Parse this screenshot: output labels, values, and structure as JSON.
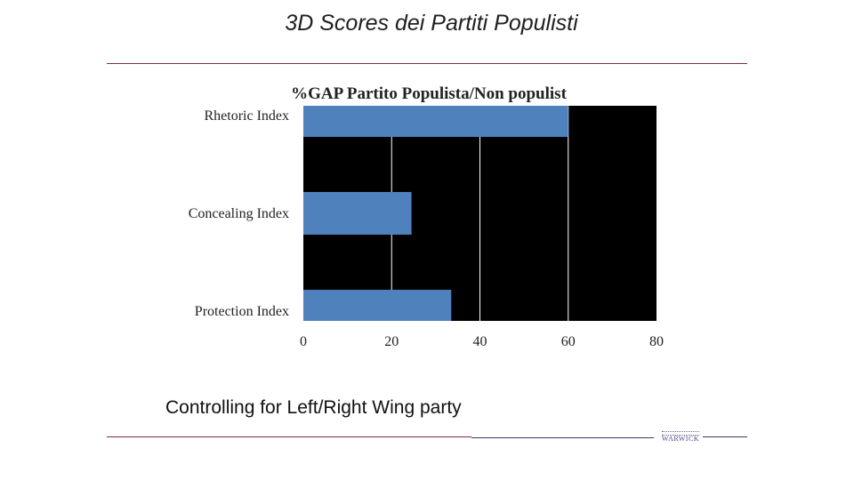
{
  "slide": {
    "title": "3D Scores dei Partiti Populisti",
    "subtitle": "Controlling for Left/Right Wing party"
  },
  "chart_data": {
    "type": "bar",
    "orientation": "horizontal",
    "title": "%GAP Partito Populista/Non populist",
    "categories": [
      "Rhetoric Index",
      "Concealing Index",
      "Protection Index"
    ],
    "values": [
      60,
      24.5,
      33.5
    ],
    "xlim": [
      0,
      80
    ],
    "xticks": [
      "0",
      "20",
      "40",
      "60",
      "80"
    ],
    "xlabel": "",
    "ylabel": "",
    "grid": "vertical",
    "legend": "none",
    "colors": {
      "bar": "#4f81bd",
      "plot_background": "#000000",
      "gridline": "#ffffff"
    }
  },
  "footer": {
    "logo_icon": "university-logo-icon",
    "logo_text": "WARWICK"
  }
}
